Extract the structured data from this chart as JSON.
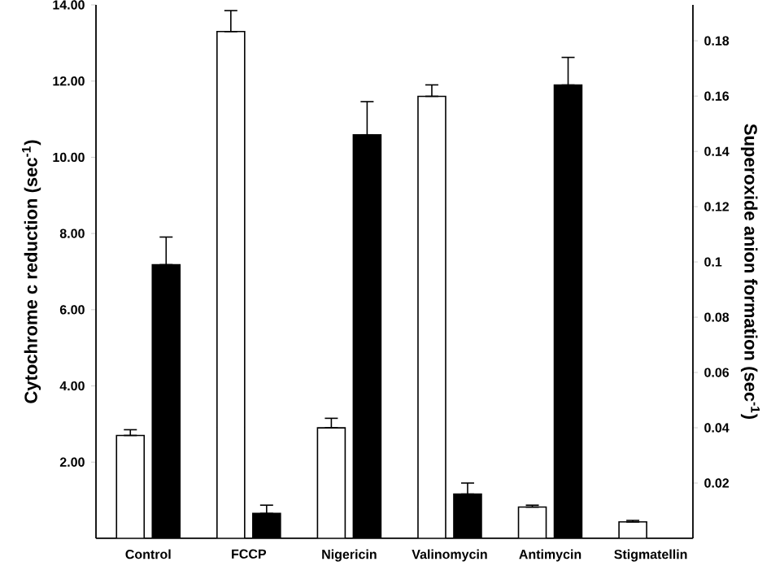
{
  "chart_data": {
    "type": "bar",
    "ylabel": "Cytochrome c reduction (sec$^{-1}$)",
    "y2label": "Superoxide anion formation (sec$^{-1}$)",
    "categories": [
      "Control",
      "FCCP",
      "Nigericin",
      "Valinomycin",
      "Antimycin",
      "Stigmatellin"
    ],
    "series": [
      {
        "color": "#ffffff",
        "values": [
          2.7,
          13.3,
          2.9,
          11.6,
          0.82,
          0.43
        ],
        "errors": [
          [
            2.7,
            2.85
          ],
          [
            13.3,
            13.85
          ],
          [
            2.9,
            3.15
          ],
          [
            11.6,
            11.9
          ],
          [
            0.82,
            0.87
          ],
          [
            0.43,
            0.47
          ]
        ]
      },
      {
        "color": "#000000",
        "axis": "y2",
        "values": [
          0.099,
          0.009,
          0.146,
          0.016,
          0.164,
          null
        ],
        "errors": [
          [
            0.099,
            0.109
          ],
          [
            0.009,
            0.012
          ],
          [
            0.146,
            0.158
          ],
          [
            0.016,
            0.02
          ],
          [
            0.164,
            0.174
          ],
          null
        ]
      }
    ],
    "ylim": [
      0,
      14
    ],
    "yticks": [
      {
        "value": 2,
        "label": "2.00"
      },
      {
        "value": 4,
        "label": "4.00"
      },
      {
        "value": 6,
        "label": "6.00"
      },
      {
        "value": 8,
        "label": "8.00"
      },
      {
        "value": 10,
        "label": "10.00"
      },
      {
        "value": 12,
        "label": "12.00"
      },
      {
        "value": 14,
        "label": "14.00"
      }
    ],
    "y2lim": [
      0,
      0.193
    ],
    "y2ticks": [
      0.02,
      0.04,
      0.06,
      0.08,
      0.1,
      0.12,
      0.14,
      0.16,
      0.18
    ]
  }
}
